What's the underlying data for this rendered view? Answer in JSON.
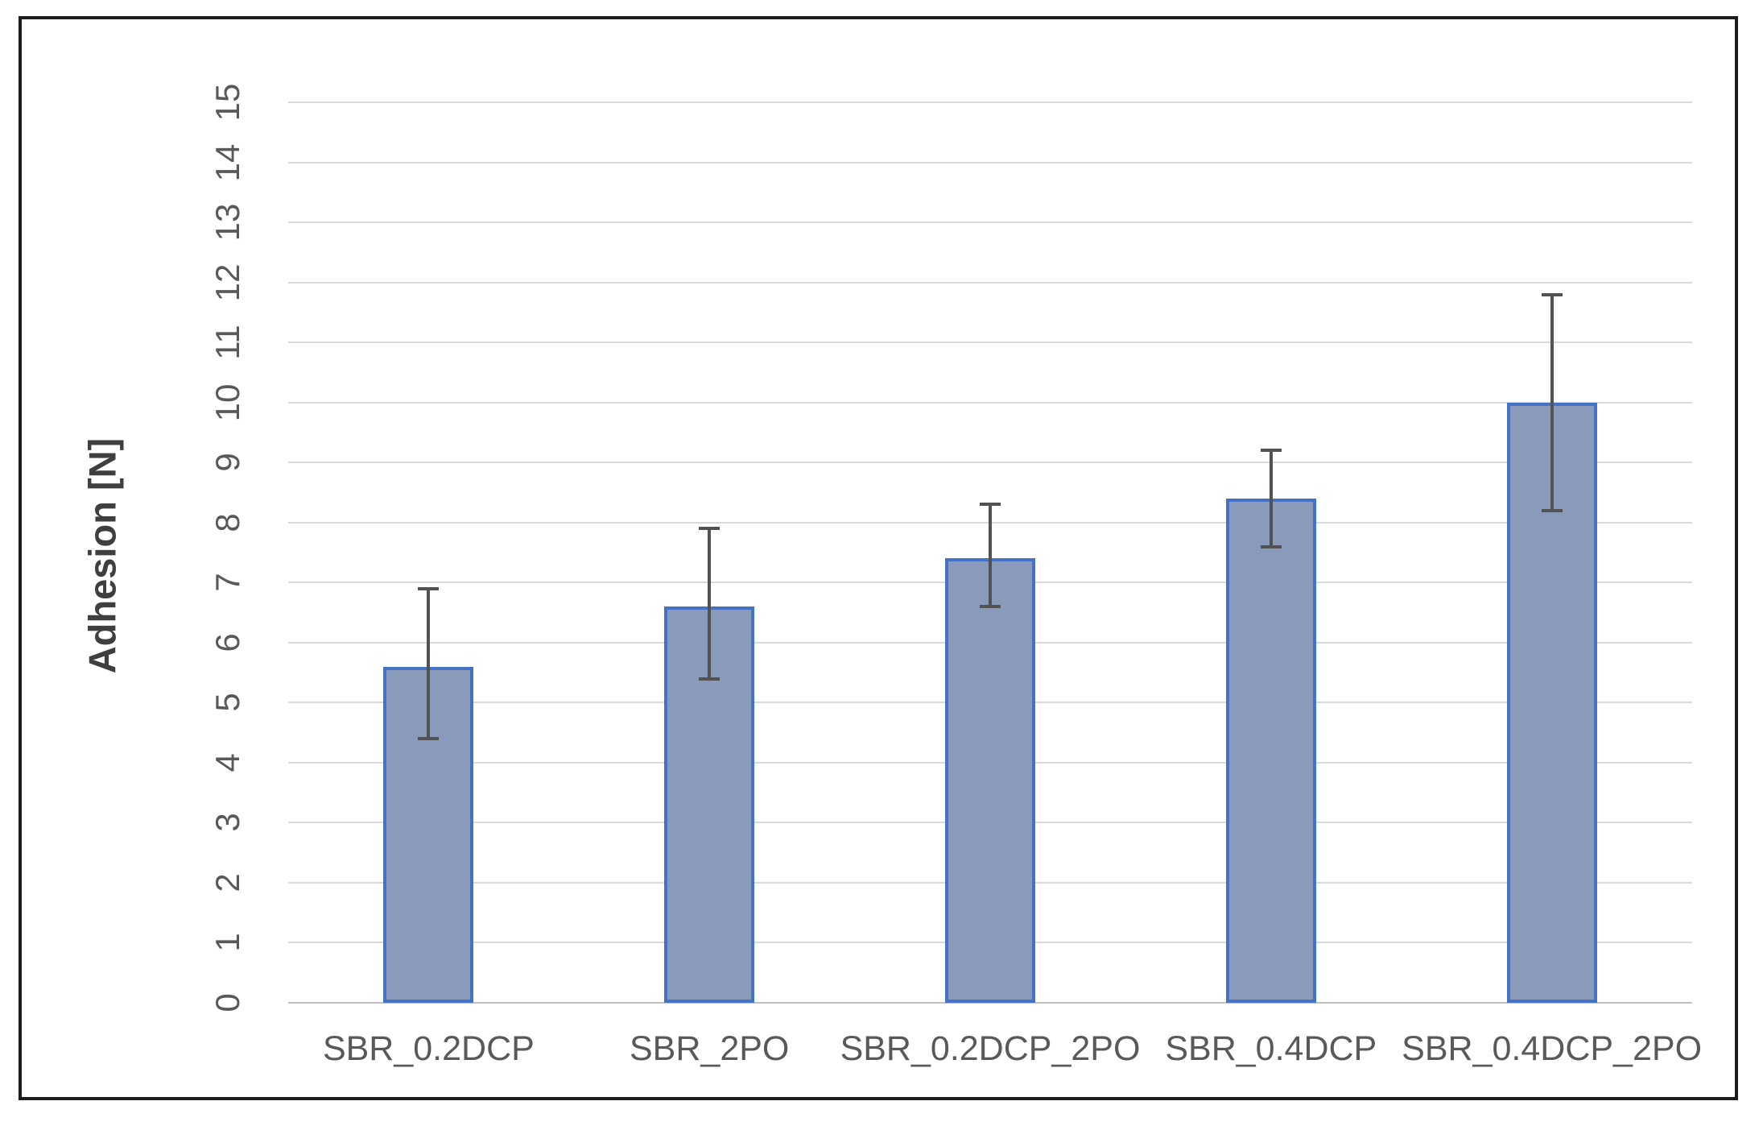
{
  "chart_data": {
    "type": "bar",
    "title": "",
    "xlabel": "",
    "ylabel": "Adhesion [N]",
    "categories": [
      "SBR_0.2DCP",
      "SBR_2PO",
      "SBR_0.2DCP_2PO",
      "SBR_0.4DCP",
      "SBR_0.4DCP_2PO"
    ],
    "values": [
      5.6,
      6.6,
      7.4,
      8.4,
      10.0
    ],
    "error_upper": [
      6.9,
      7.9,
      8.3,
      9.2,
      11.8
    ],
    "error_lower": [
      4.4,
      5.4,
      6.6,
      7.6,
      8.2
    ],
    "ylim": [
      0,
      15
    ],
    "ytick_step": 1,
    "ytick_labels": [
      "0",
      "1",
      "2",
      "3",
      "4",
      "5",
      "6",
      "7",
      "8",
      "9",
      "10",
      "11",
      "12",
      "13",
      "14",
      "15"
    ],
    "grid": "horizontal",
    "legend_position": "none",
    "tick_label_rotation_deg": 90,
    "colors": {
      "bar_fill": "#8a9abb",
      "bar_border": "#4472c4",
      "error_bar": "#525252",
      "gridline": "#d9d9d9",
      "axis_line": "#bfbfbf",
      "tick_label": "#595959",
      "axis_title": "#3f3f3f",
      "figure_border": "#1c1c1c",
      "background": "#ffffff"
    }
  }
}
